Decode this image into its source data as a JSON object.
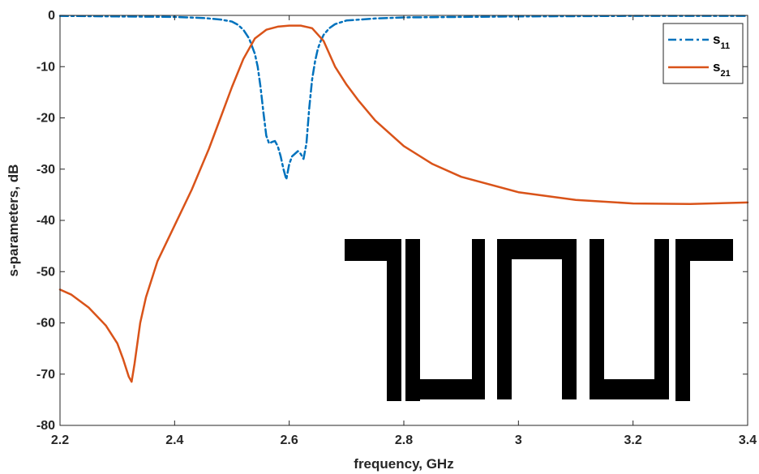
{
  "chart_data": {
    "type": "line",
    "xlabel": "frequency, GHz",
    "ylabel": "s-parameters, dB",
    "xlim": [
      2.2,
      3.4
    ],
    "ylim": [
      -80,
      0
    ],
    "xticks": [
      "2.2",
      "2.4",
      "2.6",
      "2.8",
      "3",
      "3.2",
      "3.4"
    ],
    "yticks": [
      "0",
      "-10",
      "-20",
      "-30",
      "-40",
      "-50",
      "-60",
      "-70",
      "-80"
    ],
    "grid": false,
    "legend_placement": "top-right",
    "series": [
      {
        "name": "s11",
        "legend_base": "s",
        "legend_sub": "11",
        "color": "#0072BD",
        "style": "dash-dot",
        "x": [
          2.2,
          2.3,
          2.4,
          2.45,
          2.48,
          2.5,
          2.51,
          2.52,
          2.53,
          2.54,
          2.545,
          2.55,
          2.555,
          2.56,
          2.565,
          2.57,
          2.575,
          2.58,
          2.585,
          2.59,
          2.595,
          2.6,
          2.605,
          2.61,
          2.615,
          2.62,
          2.625,
          2.63,
          2.635,
          2.64,
          2.645,
          2.65,
          2.655,
          2.66,
          2.67,
          2.68,
          2.7,
          2.75,
          2.8,
          3.0,
          3.2,
          3.4
        ],
        "y": [
          -0.1,
          -0.2,
          -0.3,
          -0.5,
          -0.8,
          -1.2,
          -1.8,
          -2.8,
          -4.5,
          -7.5,
          -10.0,
          -14.0,
          -19.0,
          -23.5,
          -25.0,
          -24.7,
          -24.5,
          -25.5,
          -27.5,
          -30.0,
          -32.0,
          -29.0,
          -27.5,
          -27.0,
          -26.5,
          -27.0,
          -28.0,
          -25.0,
          -18.0,
          -12.5,
          -9.0,
          -6.5,
          -5.0,
          -3.8,
          -2.5,
          -1.7,
          -1.0,
          -0.6,
          -0.4,
          -0.2,
          -0.1,
          -0.1
        ]
      },
      {
        "name": "s21",
        "legend_base": "s",
        "legend_sub": "21",
        "color": "#D95319",
        "style": "solid",
        "x": [
          2.2,
          2.22,
          2.25,
          2.28,
          2.3,
          2.31,
          2.32,
          2.325,
          2.33,
          2.34,
          2.35,
          2.37,
          2.4,
          2.43,
          2.46,
          2.48,
          2.5,
          2.52,
          2.54,
          2.56,
          2.58,
          2.6,
          2.62,
          2.64,
          2.66,
          2.68,
          2.7,
          2.72,
          2.75,
          2.8,
          2.85,
          2.9,
          3.0,
          3.1,
          3.2,
          3.3,
          3.4
        ],
        "y": [
          -53.5,
          -54.5,
          -57.0,
          -60.5,
          -64.0,
          -67.0,
          -70.5,
          -71.5,
          -68.0,
          -60.0,
          -55.0,
          -48.0,
          -41.0,
          -34.0,
          -26.0,
          -20.0,
          -14.0,
          -8.5,
          -4.5,
          -2.8,
          -2.2,
          -2.0,
          -2.0,
          -2.5,
          -5.0,
          -10.0,
          -13.5,
          -16.5,
          -20.5,
          -25.5,
          -29.0,
          -31.5,
          -34.5,
          -36.0,
          -36.7,
          -36.8,
          -36.5
        ]
      }
    ],
    "inset_graphic": "resonator-layout"
  }
}
